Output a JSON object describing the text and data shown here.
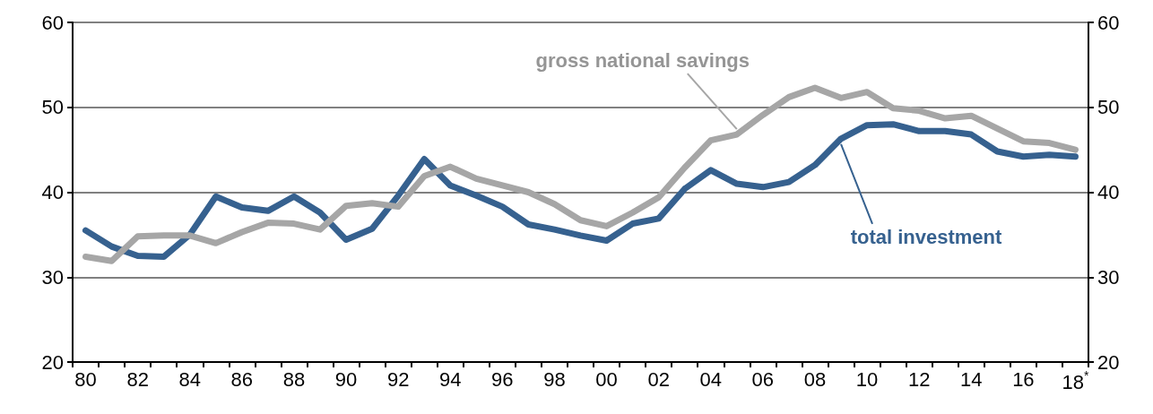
{
  "chart_data": {
    "type": "line",
    "categories": [
      "80",
      null,
      "82",
      null,
      "84",
      null,
      "86",
      null,
      "88",
      null,
      "90",
      null,
      "92",
      null,
      "94",
      null,
      "96",
      null,
      "98",
      null,
      "00",
      null,
      "02",
      null,
      "04",
      null,
      "06",
      null,
      "08",
      null,
      "10",
      null,
      "12",
      null,
      "14",
      null,
      "16",
      null,
      "18$^{*}$"
    ],
    "series": [
      {
        "name": "total investment",
        "color": "#36618f",
        "values": [
          35.5,
          33.6,
          32.5,
          32.4,
          35.0,
          39.5,
          38.2,
          37.8,
          39.5,
          37.6,
          34.4,
          35.7,
          39.6,
          43.9,
          40.8,
          39.6,
          38.3,
          36.2,
          35.6,
          34.9,
          34.3,
          36.3,
          36.9,
          40.4,
          42.6,
          41.0,
          40.6,
          41.2,
          43.2,
          46.3,
          47.9,
          48.0,
          47.2,
          47.2,
          46.8,
          44.8,
          44.2,
          44.4,
          44.2
        ]
      },
      {
        "name": "gross national savings",
        "color": "#a6a6a6",
        "values": [
          32.4,
          31.9,
          34.8,
          34.9,
          34.9,
          34.0,
          35.3,
          36.4,
          36.3,
          35.6,
          38.4,
          38.7,
          38.3,
          41.9,
          43.0,
          41.6,
          40.8,
          40.0,
          38.6,
          36.7,
          36.0,
          37.6,
          39.4,
          42.9,
          46.1,
          46.8,
          49.1,
          51.2,
          52.3,
          51.1,
          51.8,
          49.9,
          49.6,
          48.7,
          49.0,
          47.5,
          46.0,
          45.8,
          45.0
        ]
      }
    ],
    "ylim": [
      20,
      60
    ],
    "yticks": [
      20,
      30,
      40,
      50,
      60
    ],
    "y2lim": [
      20,
      60
    ],
    "y2ticks": [
      20,
      30,
      40,
      50,
      60
    ],
    "grid": "y",
    "legend": false,
    "marker": "none",
    "line_style": "solid"
  }
}
